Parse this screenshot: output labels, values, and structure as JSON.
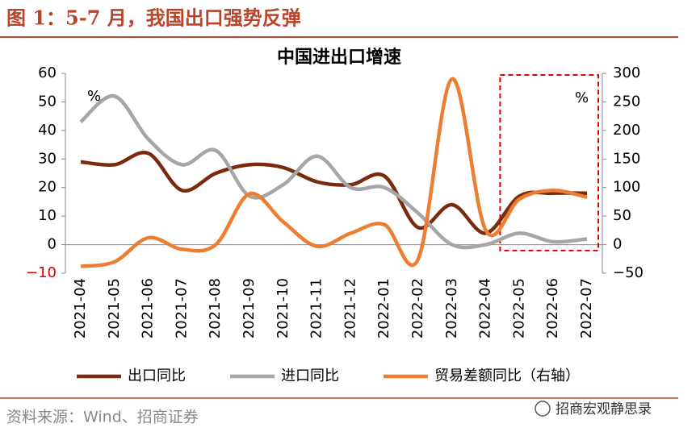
{
  "figure_title": "图 1：5-7 月，我国出口强势反弹",
  "source": "资料来源：Wind、招商证券",
  "watermark": "招商宏观静思录",
  "chart_data": {
    "type": "line",
    "title": "中国进出口增速",
    "categories": [
      "2021-04",
      "2021-05",
      "2021-06",
      "2021-07",
      "2021-08",
      "2021-09",
      "2021-10",
      "2021-11",
      "2021-12",
      "2022-01",
      "2022-02",
      "2022-03",
      "2022-04",
      "2022-05",
      "2022-06",
      "2022-07"
    ],
    "series": [
      {
        "name": "出口同比",
        "color": "#7b2a0e",
        "values": [
          29,
          28,
          32,
          19,
          25,
          28,
          27,
          22,
          21,
          24,
          6,
          14,
          4,
          17,
          18,
          18
        ]
      },
      {
        "name": "进口同比",
        "color": "#a6a6a6",
        "values": [
          43,
          52,
          37,
          28,
          33,
          17,
          21,
          31,
          20,
          20,
          11,
          0,
          0,
          4,
          1,
          2
        ]
      },
      {
        "name": "贸易差额同比（右轴）",
        "color": "#ed7d31",
        "axis": "y2",
        "values": [
          -38,
          -30,
          12,
          -8,
          0,
          89,
          40,
          -3,
          20,
          35,
          -25,
          290,
          25,
          80,
          95,
          83
        ]
      }
    ],
    "ylim": [
      -10,
      60
    ],
    "yticks": [
      {
        "value": -10,
        "label": "−10"
      },
      0,
      10,
      20,
      30,
      40,
      50,
      60
    ],
    "y2lim": [
      -50,
      300
    ],
    "y2ticks": [
      {
        "value": -50,
        "label": "−50"
      },
      0,
      50,
      100,
      150,
      200,
      250,
      300
    ],
    "y_unit": "%",
    "y2_unit": "%"
  }
}
